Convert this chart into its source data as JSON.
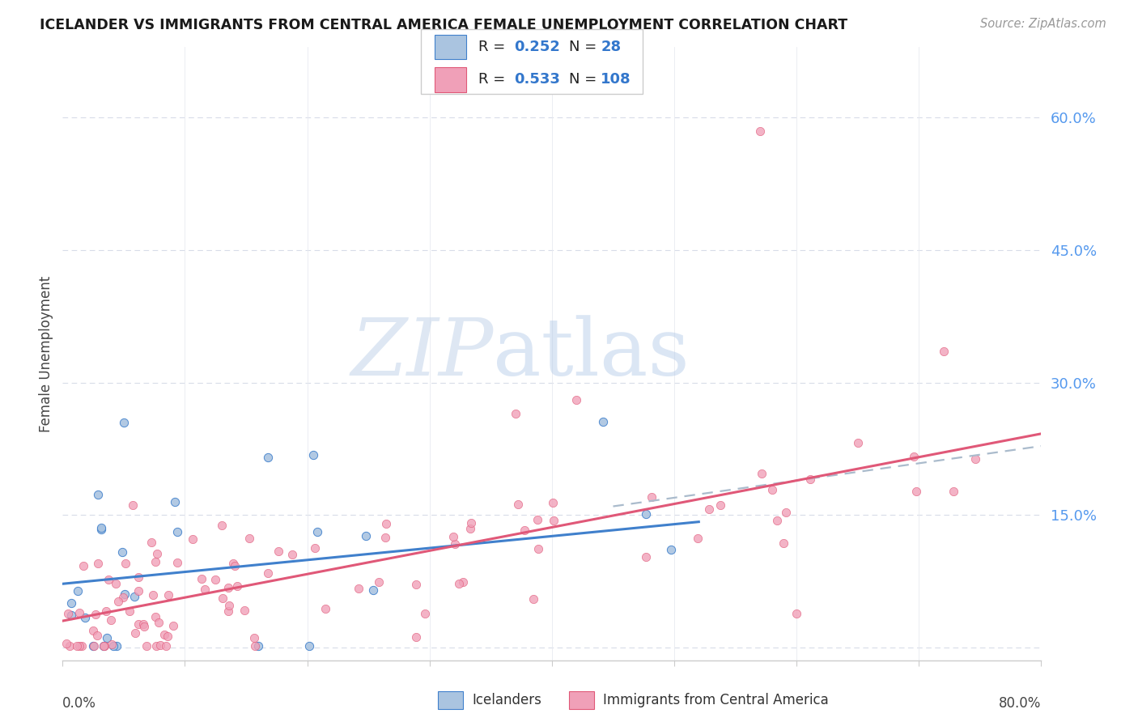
{
  "title": "ICELANDER VS IMMIGRANTS FROM CENTRAL AMERICA FEMALE UNEMPLOYMENT CORRELATION CHART",
  "source": "Source: ZipAtlas.com",
  "ylabel": "Female Unemployment",
  "yticks": [
    0.0,
    0.15,
    0.3,
    0.45,
    0.6
  ],
  "ytick_labels": [
    "",
    "15.0%",
    "30.0%",
    "45.0%",
    "60.0%"
  ],
  "xlim": [
    0.0,
    0.8
  ],
  "ylim": [
    -0.015,
    0.68
  ],
  "watermark_zip": "ZIP",
  "watermark_atlas": "atlas",
  "legend_R1": "R = 0.252",
  "legend_N1": "N =  28",
  "legend_R2": "R = 0.533",
  "legend_N2": "N = 108",
  "series1_color": "#aac4e0",
  "series2_color": "#f0a0b8",
  "trendline1_color": "#4080cc",
  "trendline2_color": "#e05878",
  "trendline_dashed_color": "#aabbcc",
  "background_color": "#ffffff",
  "grid_h_color": "#d8dce8",
  "grid_v_color": "#e8eaf0",
  "ytick_color": "#5599ee",
  "title_color": "#1a1a1a",
  "source_color": "#999999",
  "ylabel_color": "#444444",
  "legend_box_color": "#ddddee",
  "ice_trend_a": 0.072,
  "ice_trend_b": 0.135,
  "ca_trend_a": 0.03,
  "ca_trend_b": 0.265,
  "dash_trend_a": 0.072,
  "dash_trend_b": 0.195
}
